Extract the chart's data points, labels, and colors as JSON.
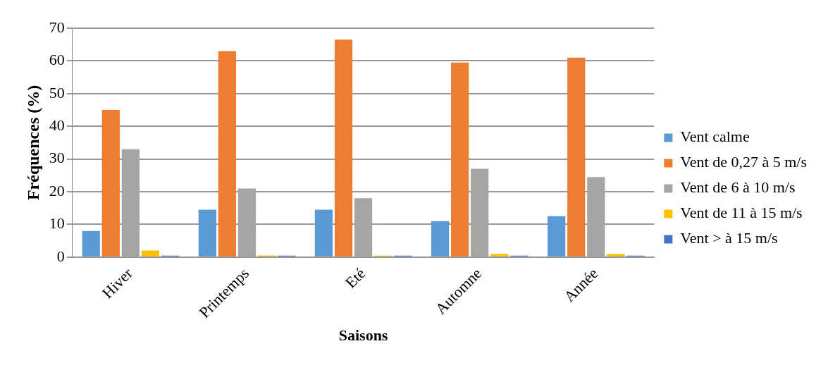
{
  "chart_data": {
    "type": "bar",
    "xlabel": "Saisons",
    "ylabel": "Fréquences (%)",
    "categories": [
      "Hiver",
      "Printemps",
      "Eté",
      "Automne",
      "Année"
    ],
    "series": [
      {
        "name": "Vent calme",
        "color": "#5b9bd5",
        "values": [
          8,
          14.5,
          14.5,
          11,
          12.5
        ]
      },
      {
        "name": "Vent de 0,27 à 5 m/s",
        "color": "#ed7d31",
        "values": [
          45,
          63,
          66.5,
          59.5,
          61
        ]
      },
      {
        "name": "Vent de 6 à 10 m/s",
        "color": "#a5a5a5",
        "values": [
          33,
          21,
          18,
          27,
          24.5
        ]
      },
      {
        "name": "Vent de 11 à 15 m/s",
        "color": "#ffc000",
        "values": [
          2,
          0.5,
          0.3,
          1,
          1
        ]
      },
      {
        "name": "Vent > à 15 m/s",
        "color": "#4472c4",
        "values": [
          0,
          0,
          0,
          0,
          0
        ]
      }
    ],
    "ylim": [
      0,
      70
    ],
    "yticks": [
      0,
      10,
      20,
      30,
      40,
      50,
      60,
      70
    ],
    "grid": "y",
    "legend": "right"
  }
}
